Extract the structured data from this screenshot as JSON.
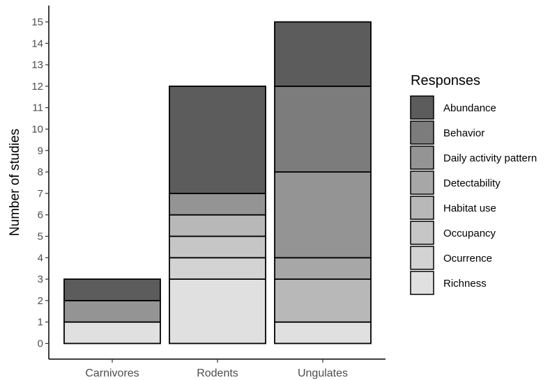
{
  "chart_data": {
    "type": "bar",
    "stacked": true,
    "categories": [
      "Carnivores",
      "Rodents",
      "Ungulates"
    ],
    "ylabel": "Number of studies",
    "xlabel": "",
    "ylim": [
      0,
      15
    ],
    "yticks": [
      0,
      1,
      2,
      3,
      4,
      5,
      6,
      7,
      8,
      9,
      10,
      11,
      12,
      13,
      14,
      15
    ],
    "grid": false,
    "legend": {
      "title": "Responses",
      "position": "right"
    },
    "series": [
      {
        "name": "Richness",
        "color": "#e0e0e0",
        "values": [
          1,
          3,
          1
        ]
      },
      {
        "name": "Ocurrence",
        "color": "#d3d3d3",
        "values": [
          0,
          1,
          0
        ]
      },
      {
        "name": "Occupancy",
        "color": "#c6c6c6",
        "values": [
          0,
          1,
          0
        ]
      },
      {
        "name": "Habitat use",
        "color": "#b8b8b8",
        "values": [
          0,
          1,
          2
        ]
      },
      {
        "name": "Detectability",
        "color": "#a7a7a7",
        "values": [
          0,
          0,
          1
        ]
      },
      {
        "name": "Daily activity pattern",
        "color": "#949494",
        "values": [
          1,
          1,
          4
        ]
      },
      {
        "name": "Behavior",
        "color": "#7c7c7c",
        "values": [
          0,
          0,
          4
        ]
      },
      {
        "name": "Abundance",
        "color": "#5c5c5c",
        "values": [
          1,
          5,
          3
        ]
      }
    ]
  }
}
